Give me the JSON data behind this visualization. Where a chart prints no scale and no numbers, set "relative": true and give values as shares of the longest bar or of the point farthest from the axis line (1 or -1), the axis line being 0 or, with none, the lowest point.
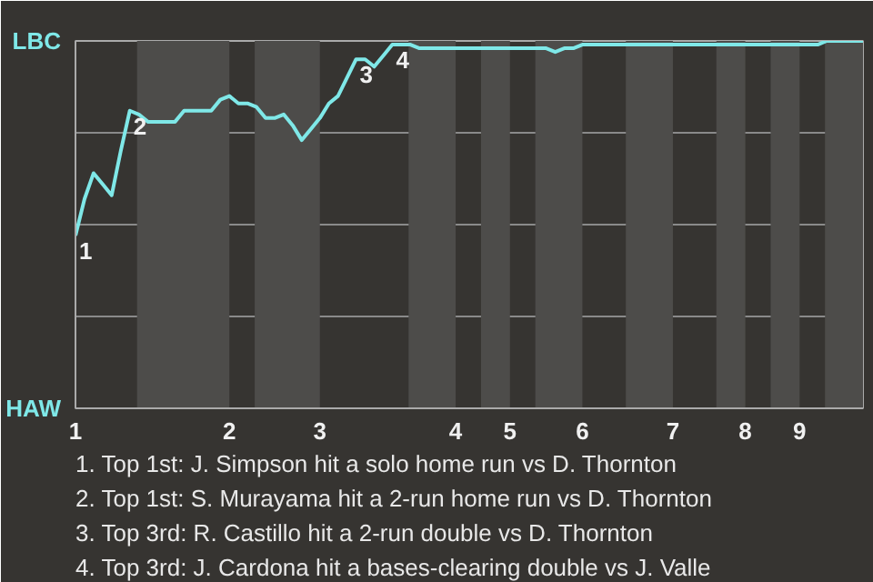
{
  "chart_data": {
    "type": "line",
    "relative": true,
    "categories": [
      "1",
      null,
      null,
      null,
      null,
      null,
      null,
      null,
      null,
      null,
      null,
      null,
      null,
      null,
      null,
      null,
      null,
      "2",
      null,
      null,
      null,
      null,
      null,
      null,
      null,
      null,
      null,
      "3",
      null,
      null,
      null,
      null,
      null,
      null,
      null,
      null,
      null,
      null,
      null,
      null,
      null,
      null,
      "4",
      null,
      null,
      null,
      null,
      null,
      "5",
      null,
      null,
      null,
      null,
      null,
      null,
      null,
      "6",
      null,
      null,
      null,
      null,
      null,
      null,
      null,
      null,
      null,
      "7",
      null,
      null,
      null,
      null,
      null,
      null,
      null,
      "8",
      null,
      null,
      null,
      null,
      null,
      "9",
      null,
      null,
      null,
      null,
      null,
      null,
      null
    ],
    "series": [
      {
        "color": "#7fe8e8",
        "values": [
          0.47,
          0.57,
          0.64,
          0.61,
          0.58,
          0.7,
          0.81,
          0.8,
          0.78,
          0.78,
          0.78,
          0.78,
          0.81,
          0.81,
          0.81,
          0.81,
          0.84,
          0.85,
          0.83,
          0.83,
          0.82,
          0.79,
          0.79,
          0.8,
          0.77,
          0.73,
          0.76,
          0.79,
          0.83,
          0.85,
          0.9,
          0.95,
          0.95,
          0.93,
          0.96,
          0.99,
          0.99,
          0.99,
          0.98,
          0.98,
          0.98,
          0.98,
          0.98,
          0.98,
          0.98,
          0.98,
          0.98,
          0.98,
          0.98,
          0.98,
          0.98,
          0.98,
          0.98,
          0.97,
          0.98,
          0.98,
          0.99,
          0.99,
          0.99,
          0.99,
          0.99,
          0.99,
          0.99,
          0.99,
          0.99,
          0.99,
          0.99,
          0.99,
          0.99,
          0.99,
          0.99,
          0.99,
          0.99,
          0.99,
          0.99,
          0.99,
          0.99,
          0.99,
          0.99,
          0.99,
          0.99,
          0.99,
          0.99,
          1.0,
          1.0,
          1.0,
          1.0,
          1.0
        ]
      }
    ],
    "grid": "y",
    "annotations": [
      "LBC",
      "HAW",
      {
        "text": "1",
        "x": "1",
        "y": 0.47
      },
      {
        "text": "2",
        "y": 0.81
      },
      {
        "text": "3",
        "y": 0.95
      },
      {
        "text": "4",
        "y": 0.99
      },
      "1. Top 1st: J. Simpson hit a solo home run vs D. Thornton",
      "2. Top 1st: S. Murayama hit a 2-run home run vs D. Thornton",
      "3. Top 3rd: R. Castillo hit a 2-run double vs D. Thornton",
      "4. Top 3rd: J. Cardona hit a bases-clearing double vs J. Valle"
    ]
  }
}
